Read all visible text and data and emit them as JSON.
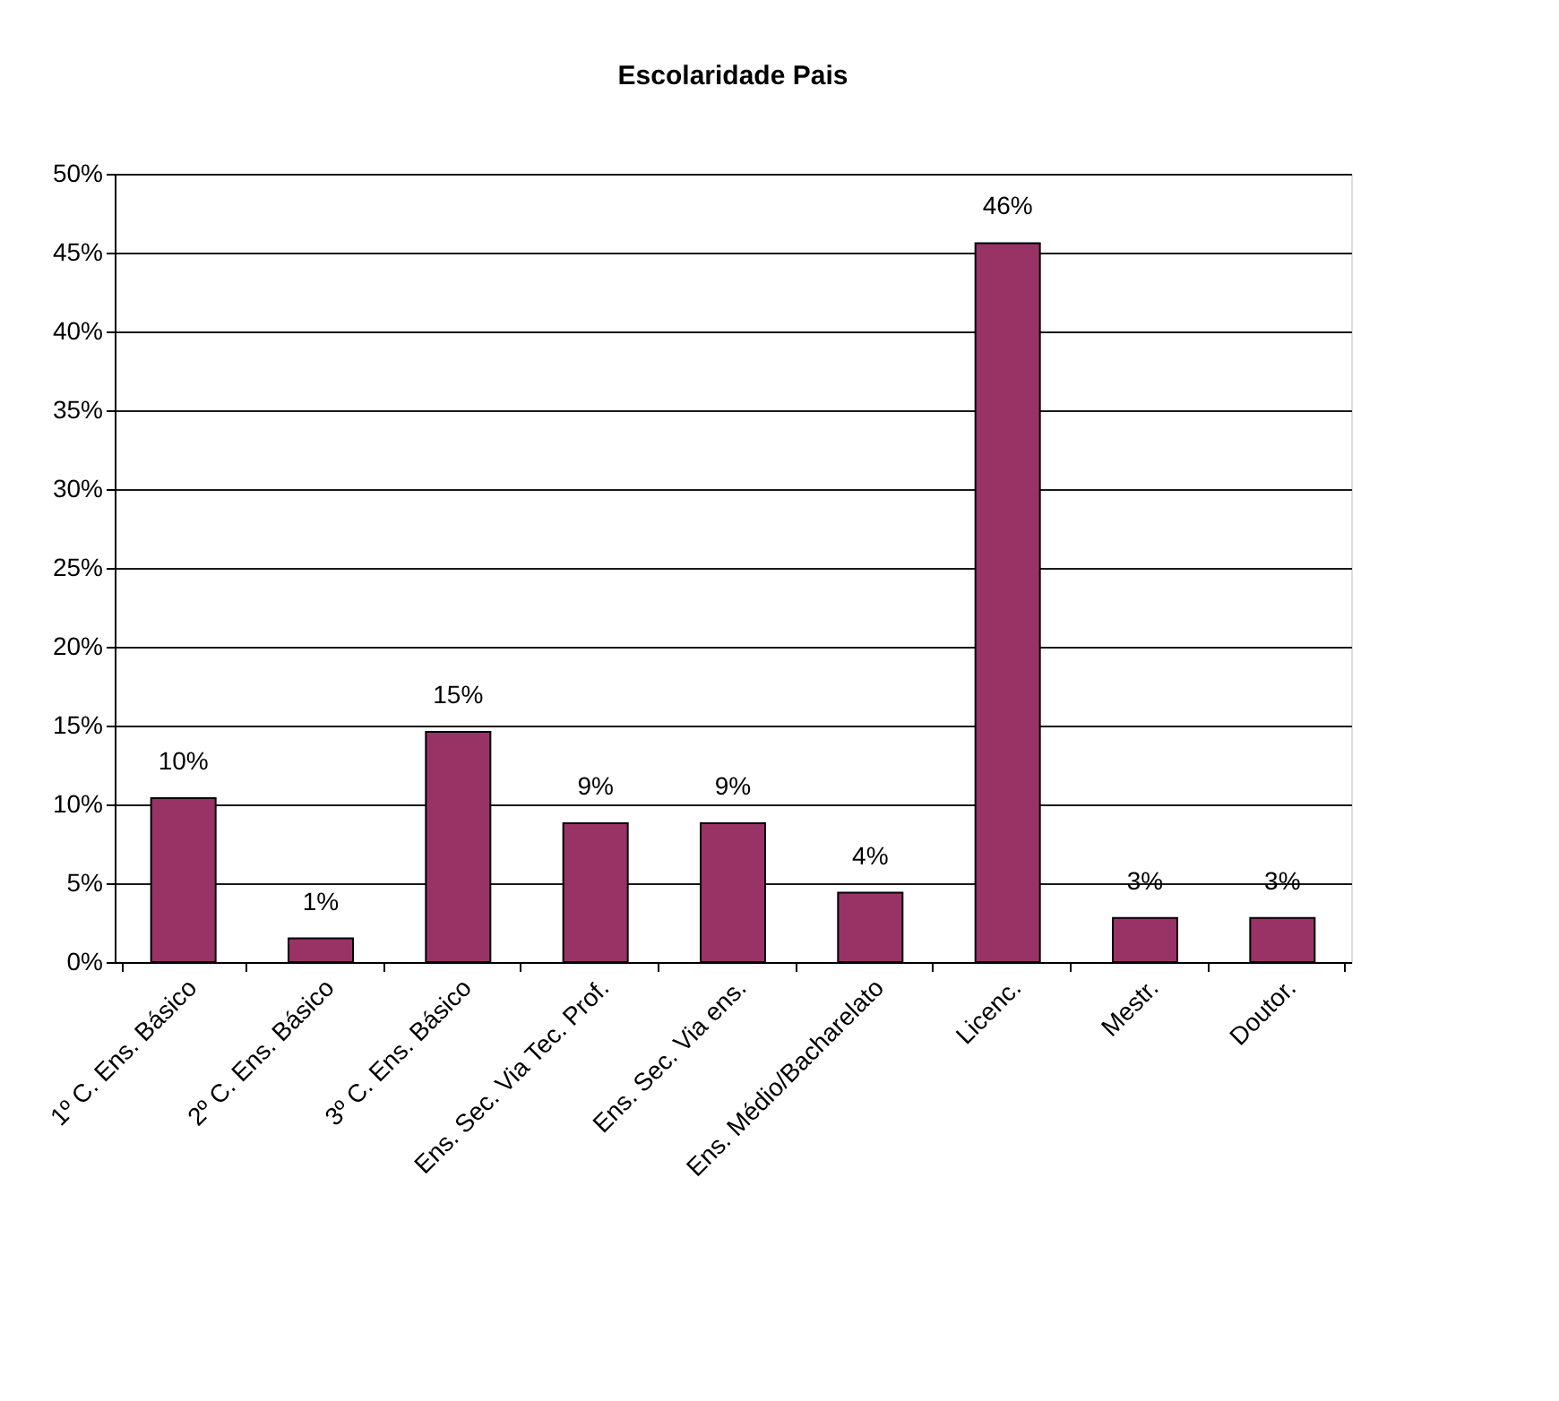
{
  "chart_data": {
    "type": "bar",
    "title": "Escolaridade Pais",
    "categories": [
      "1º C. Ens. Básico",
      "2º C. Ens. Básico",
      "3º C. Ens. Básico",
      "Ens. Sec. Via Tec. Prof.",
      "Ens. Sec. Via ens.",
      "Ens. Médio/Bacharelato",
      "Licenc.",
      "Mestr.",
      "Doutor."
    ],
    "values": [
      10.4,
      1.5,
      14.6,
      8.8,
      8.8,
      4.4,
      45.6,
      2.8,
      2.8
    ],
    "value_labels": [
      "10%",
      "1%",
      "15%",
      "9%",
      "9%",
      "4%",
      "46%",
      "3%",
      "3%"
    ],
    "color": "#993366",
    "ylim": [
      0,
      50
    ],
    "yticks": [
      {
        "value": 0,
        "label": "0%"
      },
      {
        "value": 5,
        "label": "5%"
      },
      {
        "value": 10,
        "label": "10%"
      },
      {
        "value": 15,
        "label": "15%"
      },
      {
        "value": 20,
        "label": "20%"
      },
      {
        "value": 25,
        "label": "25%"
      },
      {
        "value": 30,
        "label": "30%"
      },
      {
        "value": 35,
        "label": "35%"
      },
      {
        "value": 40,
        "label": "40%"
      },
      {
        "value": 45,
        "label": "45%"
      },
      {
        "value": 50,
        "label": "50%"
      }
    ],
    "grid": "y"
  }
}
